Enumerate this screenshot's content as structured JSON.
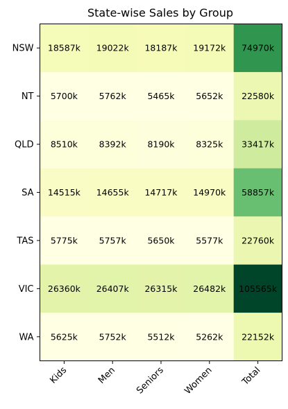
{
  "chart_data": {
    "type": "heatmap",
    "title": "State-wise Sales by Group",
    "xlabel": "",
    "ylabel": "",
    "categories": [
      "Kids",
      "Men",
      "Seniors",
      "Women",
      "Total"
    ],
    "rows": [
      "NSW",
      "NT",
      "QLD",
      "SA",
      "TAS",
      "VIC",
      "WA"
    ],
    "values": [
      [
        18587,
        19022,
        18187,
        19172,
        74970
      ],
      [
        5700,
        5762,
        5465,
        5652,
        22580
      ],
      [
        8510,
        8392,
        8190,
        8325,
        33417
      ],
      [
        14515,
        14655,
        14717,
        14970,
        58857
      ],
      [
        5775,
        5757,
        5650,
        5577,
        22760
      ],
      [
        26360,
        26407,
        26315,
        26482,
        105565
      ],
      [
        5625,
        5752,
        5512,
        5262,
        22152
      ]
    ],
    "value_suffix": "k",
    "colormap": "YlGn",
    "vmin": 5262,
    "vmax": 105565,
    "grid": false
  }
}
